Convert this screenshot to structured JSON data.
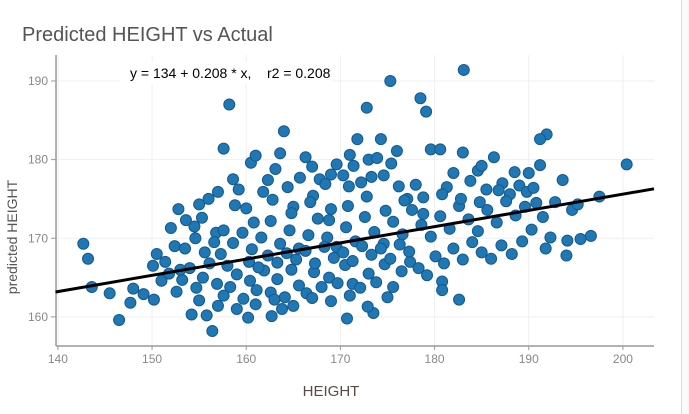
{
  "chart_data": {
    "type": "scatter",
    "title": "Predicted HEIGHT vs Actual",
    "xlabel": "HEIGHT",
    "ylabel": "predicted HEIGHT",
    "annotation": "y = 134 + 0.208 * x,    r2 = 0.208",
    "xlim": [
      139.8,
      203.3
    ],
    "ylim": [
      156.3,
      193.3
    ],
    "xticks": [
      140,
      150,
      160,
      170,
      180,
      190,
      200
    ],
    "yticks": [
      160,
      170,
      180,
      190
    ],
    "grid": true,
    "point_color": "#1f77b4",
    "fit_line": {
      "intercept": 134,
      "slope": 0.208,
      "color": "#000000"
    },
    "points": [
      [
        142.7,
        169.3
      ],
      [
        143.2,
        167.4
      ],
      [
        143.6,
        163.8
      ],
      [
        145.5,
        163
      ],
      [
        146.5,
        159.6
      ],
      [
        147.7,
        161.8
      ],
      [
        148,
        163.6
      ],
      [
        149.1,
        162.9
      ],
      [
        150.2,
        162.2
      ],
      [
        156.4,
        158.2
      ],
      [
        158.2,
        187
      ],
      [
        170.7,
        159.8
      ],
      [
        175.3,
        190
      ],
      [
        183.1,
        191.4
      ],
      [
        178.5,
        187.8
      ],
      [
        179.1,
        186.1
      ],
      [
        172.8,
        186.6
      ],
      [
        174.3,
        182.6
      ],
      [
        171.8,
        182.6
      ],
      [
        164,
        183.6
      ],
      [
        157.6,
        181.4
      ],
      [
        191.9,
        183.2
      ],
      [
        191.2,
        182.6
      ],
      [
        200.4,
        179.4
      ],
      [
        197.5,
        175.3
      ],
      [
        196.6,
        170.3
      ],
      [
        192.3,
        170.1
      ],
      [
        194.1,
        169.7
      ],
      [
        195.5,
        169.9
      ],
      [
        194,
        167.8
      ],
      [
        191.8,
        168.7
      ],
      [
        193.6,
        177.4
      ],
      [
        191.2,
        179.3
      ],
      [
        190,
        178.3
      ],
      [
        182.6,
        162.2
      ],
      [
        180.8,
        164.5
      ],
      [
        180.8,
        163.4
      ],
      [
        173.5,
        160.5
      ],
      [
        172.9,
        161.3
      ],
      [
        175,
        162.5
      ],
      [
        154.2,
        160.3
      ],
      [
        155.8,
        160.2
      ],
      [
        160.2,
        159.9
      ],
      [
        162.7,
        160.1
      ],
      [
        163.8,
        161
      ],
      [
        150.1,
        166.5
      ],
      [
        150.5,
        168
      ],
      [
        151.4,
        167
      ],
      [
        152.4,
        169
      ],
      [
        152.8,
        173.7
      ],
      [
        153.6,
        172.3
      ],
      [
        154.5,
        171.5
      ],
      [
        155.3,
        172.6
      ],
      [
        156,
        175
      ],
      [
        156.8,
        170.7
      ],
      [
        157.3,
        168
      ],
      [
        158,
        166.5
      ],
      [
        158.6,
        177.5
      ],
      [
        159.2,
        176.2
      ],
      [
        160,
        173.8
      ],
      [
        160.5,
        179.6
      ],
      [
        161,
        180.5
      ],
      [
        161.8,
        175.9
      ],
      [
        162.3,
        177.4
      ],
      [
        163.1,
        178.8
      ],
      [
        163.6,
        180.8
      ],
      [
        164.4,
        176.5
      ],
      [
        165,
        174
      ],
      [
        165.7,
        177.7
      ],
      [
        166.3,
        180.3
      ],
      [
        167.1,
        175.4
      ],
      [
        167.8,
        177.5
      ],
      [
        168.4,
        176.9
      ],
      [
        169,
        173.7
      ],
      [
        169.6,
        179.4
      ],
      [
        170.3,
        178
      ],
      [
        170.9,
        176.6
      ],
      [
        171.4,
        179.2
      ],
      [
        172.2,
        177.1
      ],
      [
        173,
        180
      ],
      [
        173.9,
        180.2
      ],
      [
        174.6,
        178
      ],
      [
        175.4,
        179.5
      ],
      [
        176.2,
        176.6
      ],
      [
        177.1,
        175
      ],
      [
        178,
        176.8
      ],
      [
        178.8,
        175.2
      ],
      [
        179.6,
        181.3
      ],
      [
        180.6,
        181.3
      ],
      [
        181.3,
        176.5
      ],
      [
        182,
        178.3
      ],
      [
        183,
        180.9
      ],
      [
        183.8,
        177.3
      ],
      [
        184.6,
        178.6
      ],
      [
        185.5,
        176.2
      ],
      [
        186.3,
        180.3
      ],
      [
        187.2,
        177
      ],
      [
        188,
        175.6
      ],
      [
        189,
        176.7
      ],
      [
        189.8,
        175.9
      ],
      [
        190.8,
        174.5
      ],
      [
        191.5,
        172.7
      ],
      [
        192.8,
        174.6
      ],
      [
        194.6,
        173.6
      ],
      [
        195.2,
        174.3
      ],
      [
        151,
        164.6
      ],
      [
        151.8,
        165.5
      ],
      [
        152.6,
        163.2
      ],
      [
        153.2,
        164.7
      ],
      [
        154,
        166.2
      ],
      [
        154.7,
        163.7
      ],
      [
        155.4,
        165
      ],
      [
        156.1,
        166.8
      ],
      [
        156.9,
        164.2
      ],
      [
        157.6,
        162.7
      ],
      [
        158.3,
        163.8
      ],
      [
        159,
        165.4
      ],
      [
        159.7,
        162.3
      ],
      [
        160.4,
        164.6
      ],
      [
        161.1,
        163.4
      ],
      [
        161.9,
        165.9
      ],
      [
        162.6,
        163.1
      ],
      [
        163.3,
        164.8
      ],
      [
        164.1,
        162.5
      ],
      [
        164.8,
        166
      ],
      [
        165.6,
        164
      ],
      [
        166.4,
        163
      ],
      [
        167.2,
        165.7
      ],
      [
        168,
        163.8
      ],
      [
        168.8,
        165
      ],
      [
        169.7,
        164.3
      ],
      [
        170.5,
        166.6
      ],
      [
        171.3,
        164.2
      ],
      [
        172.1,
        163.7
      ],
      [
        173,
        165.5
      ],
      [
        173.8,
        164.4
      ],
      [
        174.7,
        166.7
      ],
      [
        175.6,
        163.8
      ],
      [
        176.5,
        165.8
      ],
      [
        177.4,
        167
      ],
      [
        178.3,
        166.2
      ],
      [
        179.2,
        165.3
      ],
      [
        180.1,
        167.7
      ],
      [
        181,
        166.8
      ],
      [
        182,
        168.7
      ],
      [
        183,
        167.3
      ],
      [
        184,
        169.5
      ],
      [
        185,
        168.2
      ],
      [
        186,
        167.4
      ],
      [
        187.1,
        169.1
      ],
      [
        188.2,
        168
      ],
      [
        189.3,
        169.6
      ],
      [
        190.3,
        171.1
      ],
      [
        153.5,
        168.7
      ],
      [
        154.6,
        170
      ],
      [
        155.6,
        168.2
      ],
      [
        156.6,
        169.5
      ],
      [
        157.6,
        171
      ],
      [
        158.6,
        169.4
      ],
      [
        159.6,
        170.7
      ],
      [
        160.6,
        168.6
      ],
      [
        161.6,
        170.1
      ],
      [
        162.6,
        172.2
      ],
      [
        163.6,
        169.3
      ],
      [
        164.6,
        171
      ],
      [
        165.6,
        168.7
      ],
      [
        166.6,
        170.4
      ],
      [
        167.6,
        172.5
      ],
      [
        168.6,
        170.1
      ],
      [
        169.6,
        168.9
      ],
      [
        170.6,
        171.4
      ],
      [
        171.6,
        169.6
      ],
      [
        172.6,
        172.7
      ],
      [
        173.6,
        170.8
      ],
      [
        174.6,
        169.3
      ],
      [
        175.6,
        172.1
      ],
      [
        176.6,
        170.5
      ],
      [
        177.6,
        173.6
      ],
      [
        178.6,
        171.7
      ],
      [
        179.6,
        170.2
      ],
      [
        180.6,
        172.8
      ],
      [
        181.6,
        171.2
      ],
      [
        182.6,
        174.1
      ],
      [
        183.6,
        172.4
      ],
      [
        184.6,
        170.9
      ],
      [
        185.6,
        173.6
      ],
      [
        186.6,
        172
      ],
      [
        187.6,
        174.7
      ],
      [
        188.6,
        172.9
      ],
      [
        189.6,
        174
      ],
      [
        160.3,
        167
      ],
      [
        161.3,
        166.3
      ],
      [
        162.3,
        167.8
      ],
      [
        163.3,
        166.9
      ],
      [
        164.3,
        168.1
      ],
      [
        165.3,
        167.3
      ],
      [
        166.3,
        168.4
      ],
      [
        167.3,
        166.8
      ],
      [
        168.3,
        168.9
      ],
      [
        169.3,
        167.5
      ],
      [
        170.3,
        168.2
      ],
      [
        171.3,
        167.1
      ],
      [
        172.3,
        169
      ],
      [
        173.3,
        167.9
      ],
      [
        174.3,
        168.7
      ],
      [
        175.3,
        167.4
      ],
      [
        176.3,
        169.2
      ],
      [
        177.3,
        168.3
      ],
      [
        158.8,
        174.2
      ],
      [
        160.8,
        172
      ],
      [
        162.8,
        174.9
      ],
      [
        164.8,
        173.2
      ],
      [
        166.8,
        174.6
      ],
      [
        168.8,
        172.3
      ],
      [
        170.8,
        174.1
      ],
      [
        172.8,
        175.3
      ],
      [
        174.8,
        173.5
      ],
      [
        176.8,
        174.8
      ],
      [
        178.8,
        173.1
      ],
      [
        180.8,
        175.6
      ],
      [
        182.8,
        175
      ],
      [
        184.8,
        174.6
      ],
      [
        186.8,
        176.1
      ],
      [
        155,
        162.1
      ],
      [
        157,
        161.4
      ],
      [
        159,
        161
      ],
      [
        161,
        161.6
      ],
      [
        163,
        162.2
      ],
      [
        165,
        161.4
      ],
      [
        167,
        162.4
      ],
      [
        169,
        162
      ],
      [
        171,
        162.7
      ],
      [
        152,
        171.3
      ],
      [
        153,
        166
      ],
      [
        155,
        174.3
      ],
      [
        157,
        175.9
      ],
      [
        167,
        179.1
      ],
      [
        169,
        178.1
      ],
      [
        171,
        180.6
      ],
      [
        173.3,
        177.8
      ],
      [
        176,
        181.1
      ],
      [
        185,
        179.2
      ],
      [
        188.5,
        178.4
      ],
      [
        190.5,
        176.4
      ]
    ]
  }
}
